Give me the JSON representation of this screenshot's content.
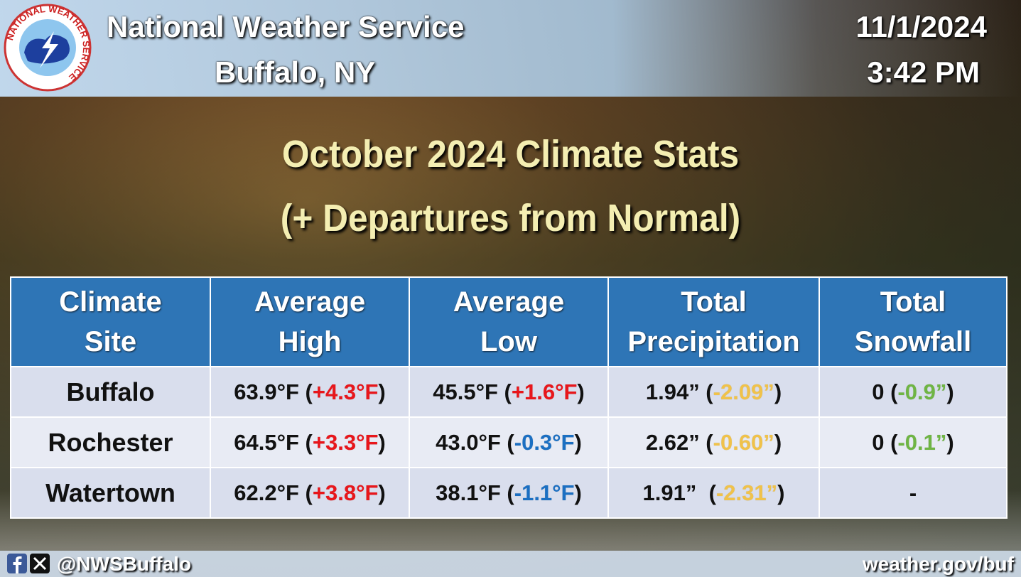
{
  "header": {
    "agency": "National Weather Service",
    "office": "Buffalo, NY",
    "date": "11/1/2024",
    "time": "3:42 PM",
    "logo_text": "NATIONAL WEATHER SERVICE"
  },
  "title": {
    "line1": "October 2024 Climate Stats",
    "line2": "(+ Departures from Normal)"
  },
  "table": {
    "columns": [
      [
        "Climate",
        "Site"
      ],
      [
        "Average",
        "High"
      ],
      [
        "Average",
        "Low"
      ],
      [
        "Total",
        "Precipitation"
      ],
      [
        "Total",
        "Snowfall"
      ]
    ],
    "rows": [
      {
        "site": "Buffalo",
        "cells": [
          {
            "text": "63.9°F (",
            "departure": "+4.3°F",
            "close": ")",
            "color": "#e8161b"
          },
          {
            "text": "45.5°F (",
            "departure": "+1.6°F",
            "close": ")",
            "color": "#e8161b"
          },
          {
            "text": "1.94” (",
            "departure": "-2.09”",
            "close": ")",
            "color": "#f0c24a"
          },
          {
            "text": "0 (",
            "departure": "-0.9”",
            "close": ")",
            "color": "#6fb544"
          }
        ]
      },
      {
        "site": "Rochester",
        "cells": [
          {
            "text": "64.5°F (",
            "departure": "+3.3°F",
            "close": ")",
            "color": "#e8161b"
          },
          {
            "text": "43.0°F (",
            "departure": "-0.3°F",
            "close": ")",
            "color": "#1b6fc2"
          },
          {
            "text": "2.62” (",
            "departure": "-0.60”",
            "close": ")",
            "color": "#f0c24a"
          },
          {
            "text": "0 (",
            "departure": "-0.1”",
            "close": ")",
            "color": "#6fb544"
          }
        ]
      },
      {
        "site": "Watertown",
        "cells": [
          {
            "text": "62.2°F (",
            "departure": "+3.8°F",
            "close": ")",
            "color": "#e8161b"
          },
          {
            "text": "38.1°F (",
            "departure": "-1.1°F",
            "close": ")",
            "color": "#1b6fc2"
          },
          {
            "text": "1.91”  (",
            "departure": "-2.31”",
            "close": ")",
            "color": "#f0c24a"
          },
          {
            "text": "-"
          }
        ]
      }
    ]
  },
  "footer": {
    "handle": "@NWSBuffalo",
    "website": "weather.gov/buf"
  }
}
